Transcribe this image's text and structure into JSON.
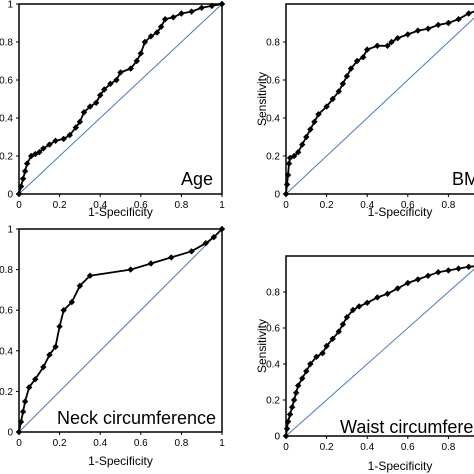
{
  "chart_data": [
    {
      "type": "line",
      "title": "Age",
      "xlabel": "1-Specificity",
      "ylabel": "",
      "xlim": [
        0,
        1
      ],
      "ylim": [
        0,
        1
      ],
      "xticks": [
        "0",
        "0.2",
        "0.4",
        "0.6",
        "0.8",
        "1"
      ],
      "yticks": [
        "0",
        "0.2",
        "0.4",
        "0.6",
        "0.8",
        "1"
      ],
      "reference_line": [
        [
          0,
          0
        ],
        [
          1,
          1
        ]
      ],
      "series": [
        {
          "values": [
            [
              0,
              0
            ],
            [
              0.01,
              0.04
            ],
            [
              0.02,
              0.08
            ],
            [
              0.03,
              0.12
            ],
            [
              0.04,
              0.16
            ],
            [
              0.06,
              0.2
            ],
            [
              0.08,
              0.21
            ],
            [
              0.1,
              0.22
            ],
            [
              0.12,
              0.24
            ],
            [
              0.15,
              0.26
            ],
            [
              0.18,
              0.28
            ],
            [
              0.22,
              0.29
            ],
            [
              0.25,
              0.31
            ],
            [
              0.28,
              0.35
            ],
            [
              0.3,
              0.38
            ],
            [
              0.32,
              0.43
            ],
            [
              0.35,
              0.46
            ],
            [
              0.38,
              0.48
            ],
            [
              0.4,
              0.52
            ],
            [
              0.42,
              0.55
            ],
            [
              0.45,
              0.58
            ],
            [
              0.48,
              0.6
            ],
            [
              0.5,
              0.64
            ],
            [
              0.55,
              0.66
            ],
            [
              0.58,
              0.7
            ],
            [
              0.6,
              0.74
            ],
            [
              0.62,
              0.8
            ],
            [
              0.65,
              0.83
            ],
            [
              0.68,
              0.85
            ],
            [
              0.7,
              0.88
            ],
            [
              0.72,
              0.92
            ],
            [
              0.76,
              0.93
            ],
            [
              0.8,
              0.95
            ],
            [
              0.85,
              0.96
            ],
            [
              0.9,
              0.98
            ],
            [
              0.95,
              0.99
            ],
            [
              1,
              1
            ]
          ]
        }
      ]
    },
    {
      "type": "line",
      "title": "BMI",
      "xlabel": "1-Specificity",
      "ylabel": "Sensitivity",
      "xlim": [
        0,
        1
      ],
      "ylim": [
        0,
        1
      ],
      "xticks": [
        "0",
        "0.2",
        "0.4",
        "0.6",
        "0.8"
      ],
      "yticks": [
        "0",
        "0.2",
        "0.4",
        "0.6",
        "0.8"
      ],
      "reference_line": [
        [
          0,
          0
        ],
        [
          1,
          1
        ]
      ],
      "series": [
        {
          "values": [
            [
              0,
              0
            ],
            [
              0.005,
              0.05
            ],
            [
              0.01,
              0.1
            ],
            [
              0.015,
              0.16
            ],
            [
              0.02,
              0.19
            ],
            [
              0.04,
              0.2
            ],
            [
              0.06,
              0.22
            ],
            [
              0.08,
              0.26
            ],
            [
              0.1,
              0.3
            ],
            [
              0.12,
              0.34
            ],
            [
              0.14,
              0.38
            ],
            [
              0.16,
              0.42
            ],
            [
              0.2,
              0.46
            ],
            [
              0.23,
              0.5
            ],
            [
              0.26,
              0.54
            ],
            [
              0.28,
              0.58
            ],
            [
              0.3,
              0.62
            ],
            [
              0.32,
              0.66
            ],
            [
              0.35,
              0.7
            ],
            [
              0.38,
              0.72
            ],
            [
              0.4,
              0.76
            ],
            [
              0.45,
              0.78
            ],
            [
              0.5,
              0.78
            ],
            [
              0.52,
              0.8
            ],
            [
              0.55,
              0.82
            ],
            [
              0.6,
              0.84
            ],
            [
              0.65,
              0.86
            ],
            [
              0.7,
              0.87
            ],
            [
              0.75,
              0.89
            ],
            [
              0.8,
              0.9
            ],
            [
              0.85,
              0.92
            ],
            [
              0.9,
              0.95
            ],
            [
              0.95,
              0.97
            ],
            [
              1,
              0.98
            ]
          ]
        }
      ]
    },
    {
      "type": "line",
      "title": "Neck circumference",
      "xlabel": "1-Specificity",
      "ylabel": "",
      "xlim": [
        0,
        1
      ],
      "ylim": [
        0,
        1
      ],
      "xticks": [
        "0",
        "0.2",
        "0.4",
        "0.6",
        "0.8",
        "1"
      ],
      "yticks": [
        "0",
        "0.2",
        "0.4",
        "0.6",
        "0.8",
        "1"
      ],
      "reference_line": [
        [
          0,
          0
        ],
        [
          1,
          1
        ]
      ],
      "series": [
        {
          "values": [
            [
              0,
              0
            ],
            [
              0.01,
              0.05
            ],
            [
              0.02,
              0.1
            ],
            [
              0.03,
              0.15
            ],
            [
              0.05,
              0.22
            ],
            [
              0.08,
              0.26
            ],
            [
              0.12,
              0.32
            ],
            [
              0.15,
              0.38
            ],
            [
              0.18,
              0.42
            ],
            [
              0.2,
              0.52
            ],
            [
              0.22,
              0.6
            ],
            [
              0.26,
              0.64
            ],
            [
              0.3,
              0.72
            ],
            [
              0.35,
              0.77
            ],
            [
              0.55,
              0.8
            ],
            [
              0.65,
              0.83
            ],
            [
              0.75,
              0.86
            ],
            [
              0.85,
              0.89
            ],
            [
              0.92,
              0.93
            ],
            [
              0.96,
              0.96
            ],
            [
              1,
              1
            ]
          ]
        }
      ]
    },
    {
      "type": "line",
      "title": "Waist circumference",
      "xlabel": "1-Specificity",
      "ylabel": "Sensitivity",
      "xlim": [
        0,
        1
      ],
      "ylim": [
        0,
        1
      ],
      "xticks": [
        "0",
        "0.2",
        "0.4",
        "0.6",
        "0.8"
      ],
      "yticks": [
        "0",
        "0.2",
        "0.4",
        "0.6",
        "0.8"
      ],
      "reference_line": [
        [
          0,
          0
        ],
        [
          1,
          1
        ]
      ],
      "series": [
        {
          "values": [
            [
              0,
              0
            ],
            [
              0.005,
              0.04
            ],
            [
              0.01,
              0.08
            ],
            [
              0.02,
              0.12
            ],
            [
              0.03,
              0.16
            ],
            [
              0.04,
              0.2
            ],
            [
              0.05,
              0.24
            ],
            [
              0.06,
              0.28
            ],
            [
              0.08,
              0.32
            ],
            [
              0.1,
              0.36
            ],
            [
              0.12,
              0.4
            ],
            [
              0.15,
              0.44
            ],
            [
              0.18,
              0.46
            ],
            [
              0.2,
              0.5
            ],
            [
              0.23,
              0.54
            ],
            [
              0.26,
              0.58
            ],
            [
              0.28,
              0.62
            ],
            [
              0.3,
              0.66
            ],
            [
              0.33,
              0.7
            ],
            [
              0.36,
              0.72
            ],
            [
              0.4,
              0.74
            ],
            [
              0.45,
              0.77
            ],
            [
              0.5,
              0.79
            ],
            [
              0.55,
              0.82
            ],
            [
              0.6,
              0.85
            ],
            [
              0.65,
              0.87
            ],
            [
              0.7,
              0.89
            ],
            [
              0.75,
              0.91
            ],
            [
              0.8,
              0.92
            ],
            [
              0.85,
              0.93
            ],
            [
              0.9,
              0.94
            ],
            [
              1,
              0.95
            ]
          ]
        }
      ]
    }
  ],
  "colors": {
    "curve": "#000000",
    "reference": "#4a7ab5",
    "frame": "#000000"
  }
}
